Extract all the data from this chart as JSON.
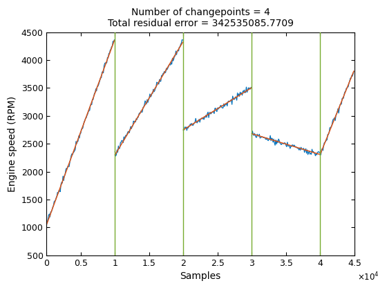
{
  "title": "Number of changepoints = 4\nTotal residual error = 342535085.7709",
  "xlabel": "Samples",
  "ylabel": "Engine speed (RPM)",
  "xlim": [
    0,
    45000
  ],
  "ylim": [
    500,
    4500
  ],
  "xticks": [
    0,
    5000,
    10000,
    15000,
    20000,
    25000,
    30000,
    35000,
    40000,
    45000
  ],
  "xtick_labels": [
    "0",
    "0.5",
    "1",
    "1.5",
    "2",
    "2.5",
    "3",
    "3.5",
    "4",
    "4.5"
  ],
  "yticks": [
    500,
    1000,
    1500,
    2000,
    2500,
    3000,
    3500,
    4000,
    4500
  ],
  "changepoints": [
    10000,
    20000,
    30000,
    40000
  ],
  "changepoint_color": "#77AC30",
  "data_color": "#0072BD",
  "fit_color": "#D95319",
  "segments": [
    {
      "x_start": 0,
      "x_end": 10000,
      "y_start": 1050,
      "y_end": 4350,
      "n_pts": 100
    },
    {
      "x_start": 10000,
      "x_end": 20000,
      "y_start": 2300,
      "y_end": 4320,
      "n_pts": 100
    },
    {
      "x_start": 20000,
      "x_end": 30000,
      "y_start": 2750,
      "y_end": 3500,
      "n_pts": 100
    },
    {
      "x_start": 30000,
      "x_end": 40000,
      "y_start": 2680,
      "y_end": 2310,
      "n_pts": 100
    },
    {
      "x_start": 40000,
      "x_end": 45000,
      "y_start": 2310,
      "y_end": 3800,
      "n_pts": 50
    }
  ],
  "noise_scale": 30,
  "figsize": [
    5.6,
    4.2
  ],
  "dpi": 100,
  "title_fontsize": 10,
  "label_fontsize": 10,
  "tick_fontsize": 9
}
